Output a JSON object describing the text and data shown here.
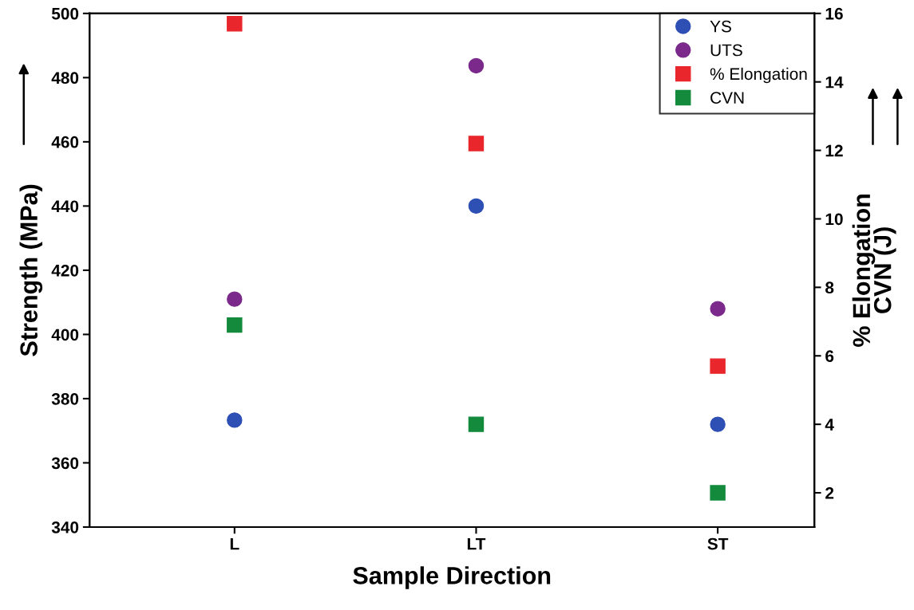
{
  "chart_data": {
    "type": "scatter",
    "xlabel": "Sample Direction",
    "ylabel": "Strength (MPa)",
    "y2label": "% Elongation\nCVN (J)",
    "categories": [
      "L",
      "LT",
      "ST"
    ],
    "series": [
      {
        "name": "YS",
        "color": "#2e4fb4",
        "marker": "circle",
        "values": [
          373.3,
          440,
          372
        ]
      },
      {
        "name": "UTS",
        "color": "#7b2a8c",
        "marker": "circle",
        "values": [
          411,
          483.7,
          408
        ]
      },
      {
        "name": "% Elongation",
        "color": "#e8262b",
        "marker": "square",
        "axis": "y2",
        "values": [
          15.7,
          12.2,
          5.7
        ]
      },
      {
        "name": "CVN",
        "color": "#138a3c",
        "marker": "square",
        "axis": "y2",
        "values": [
          6.9,
          4.0,
          2.0
        ]
      }
    ],
    "ylim": [
      340,
      500
    ],
    "yticks": [
      340,
      360,
      380,
      400,
      420,
      440,
      460,
      480,
      500
    ],
    "y2lim": [
      1,
      16
    ],
    "y2ticks": [
      2,
      4,
      6,
      8,
      10,
      12,
      14,
      16
    ],
    "legend": "top right",
    "grid": false
  }
}
